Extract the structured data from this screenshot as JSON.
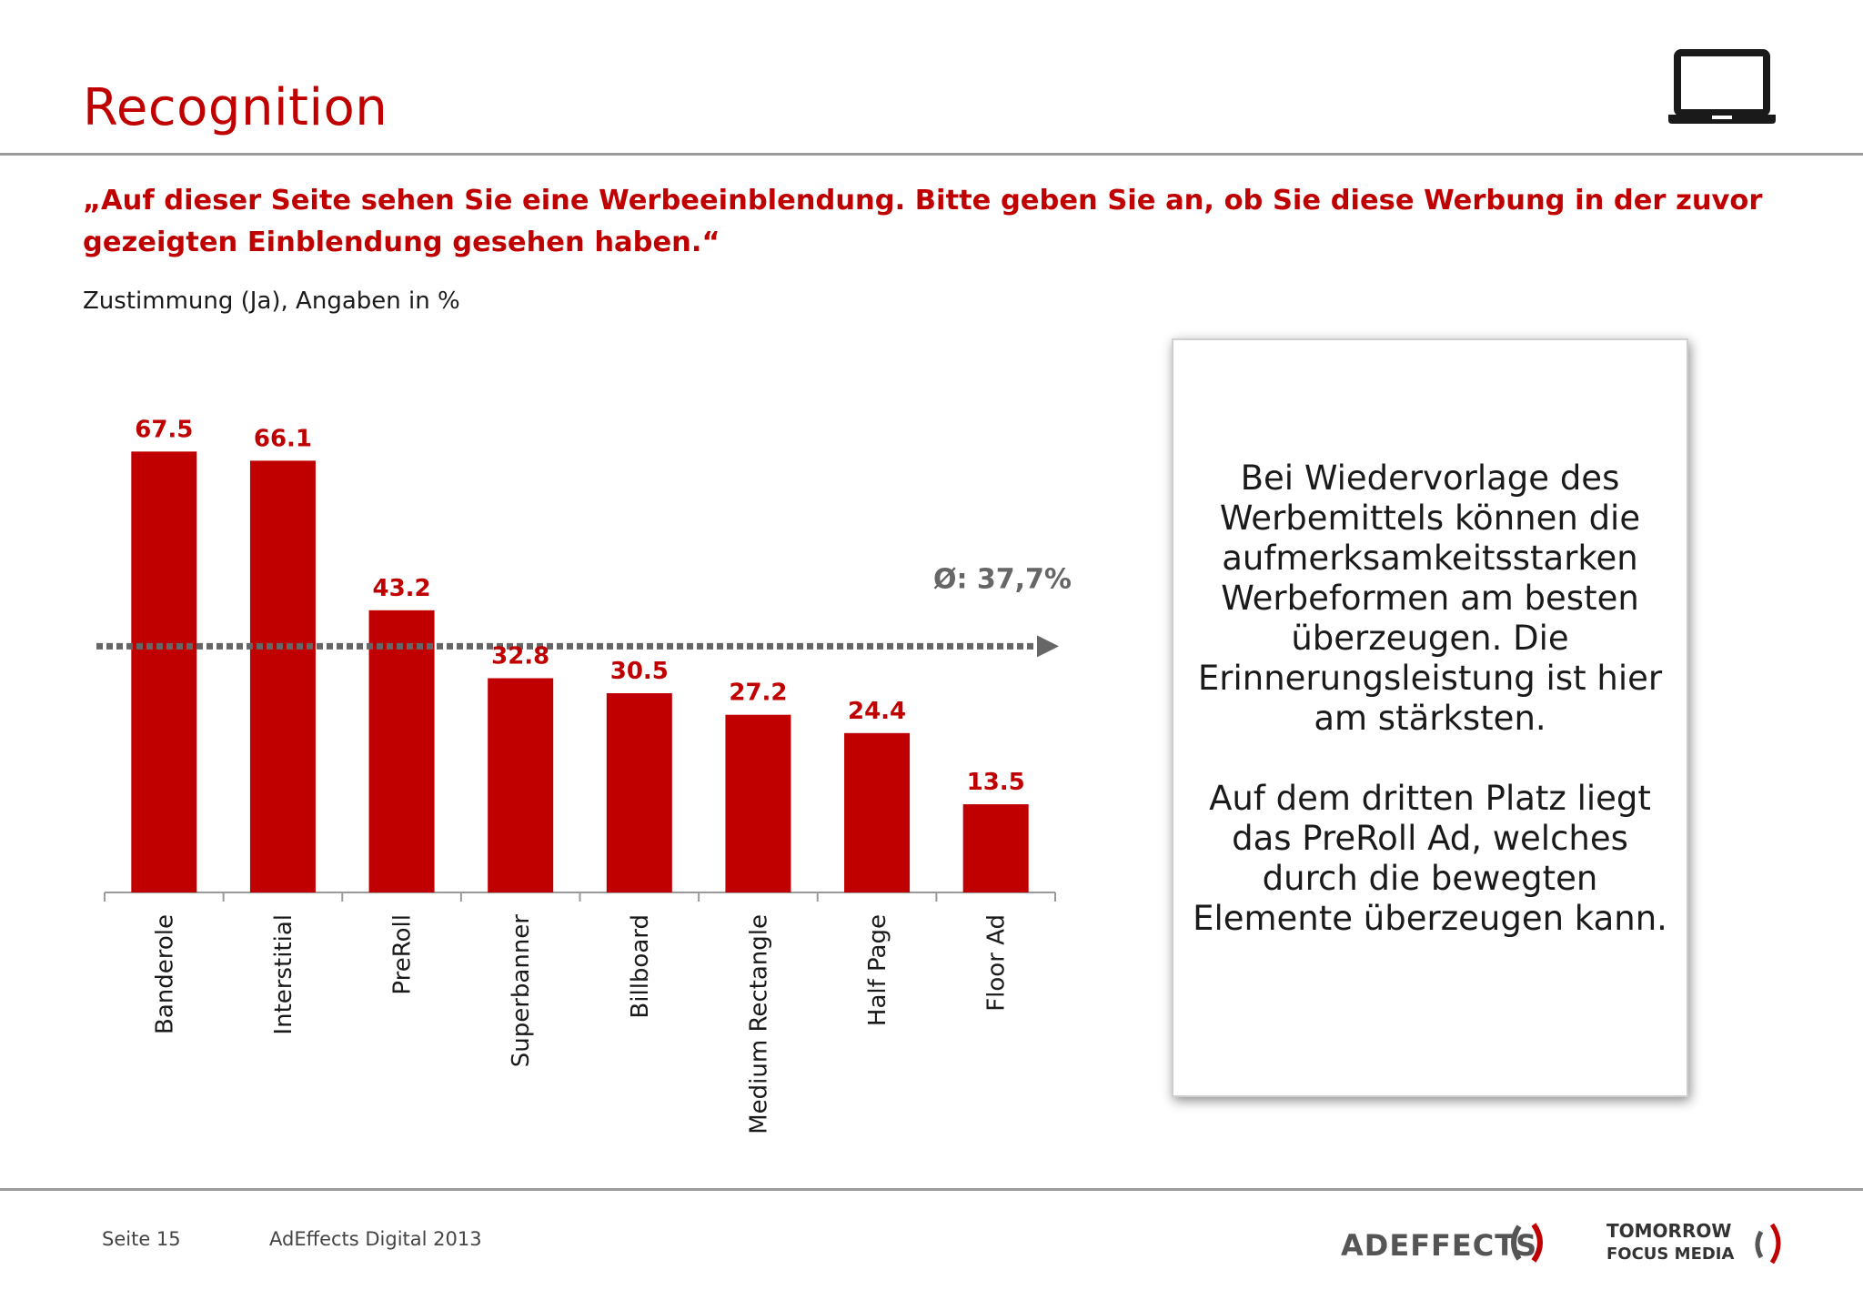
{
  "slide": {
    "title": "Recognition",
    "question": "„Auf dieser Seite sehen Sie eine Werbeeinblendung. Bitte geben Sie an, ob Sie diese Werbung in der zuvor gezeigten Einblendung gesehen haben.“",
    "subtitle": "Zustimmung (Ja), Angaben in %",
    "icon": "laptop-icon"
  },
  "chart_data": {
    "type": "bar",
    "categories": [
      "Banderole",
      "Interstitial",
      "PreRoll",
      "Superbanner",
      "Billboard",
      "Medium Rectangle",
      "Half Page",
      "Floor Ad"
    ],
    "values": [
      67.5,
      66.1,
      43.2,
      32.8,
      30.5,
      27.2,
      24.4,
      13.5
    ],
    "value_labels": [
      "67.5",
      "66.1",
      "43.2",
      "32.8",
      "30.5",
      "27.2",
      "24.4",
      "13.5"
    ],
    "average": 37.7,
    "average_label": "Ø: 37,7%",
    "ylim": [
      0,
      70
    ],
    "bar_color": "#c00000",
    "average_line_color": "#666666",
    "grid": false,
    "legend": "none"
  },
  "info_box": {
    "paragraph1": "Bei Wiedervorlage des Werbemittels können die aufmerksamkeitsstarken Werbeformen am besten überzeugen. Die Erinnerungsleistung ist hier am stärksten.",
    "paragraph2": "Auf dem dritten Platz liegt das PreRoll Ad, welches durch die bewegten Elemente überzeugen kann."
  },
  "footer": {
    "page": "Seite 15",
    "study": "AdEffects Digital 2013",
    "logo_adeffects_text": "ADEFFECTS",
    "logo_tfm_line1": "TOMORROW",
    "logo_tfm_line2": "FOCUS MEDIA"
  },
  "colors": {
    "accent": "#c00000",
    "rule": "#9a9a9a",
    "text": "#1a1a1a"
  }
}
